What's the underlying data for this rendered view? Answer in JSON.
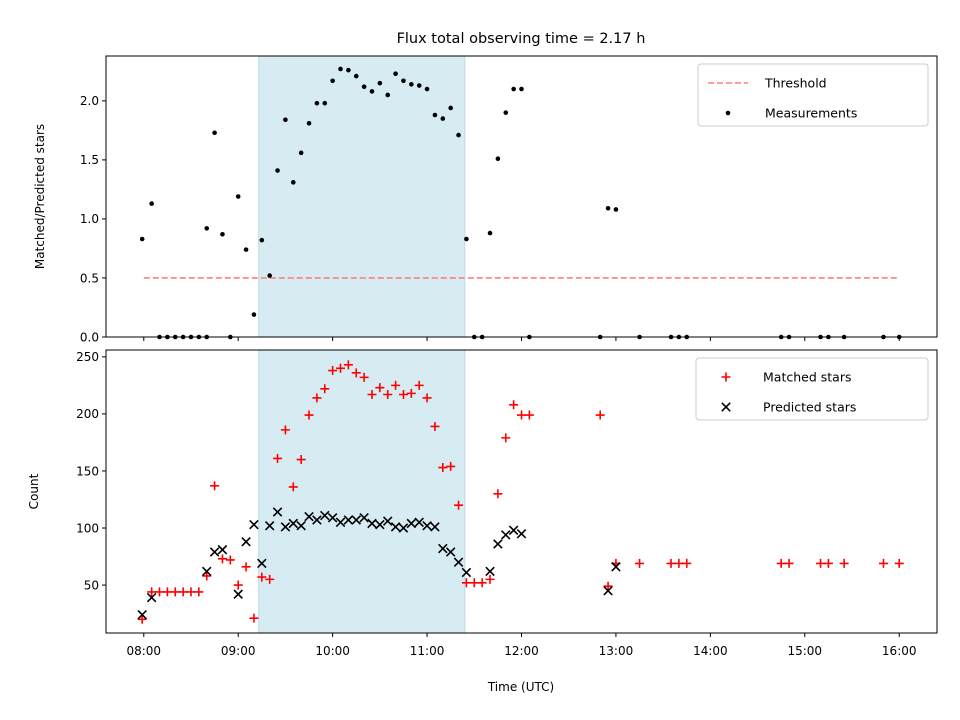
{
  "chart_data": [
    {
      "type": "scatter",
      "title": "Flux total observing time = 2.17 h",
      "ylabel": "Matched/Predicted stars",
      "xlabel": "",
      "xlim": [
        "07:36",
        "16:24"
      ],
      "ylim": [
        0,
        2.38
      ],
      "yticks": [
        "0.0",
        "0.5",
        "1.0",
        "1.5",
        "2.0"
      ],
      "shaded_region": [
        "09:13",
        "11:24"
      ],
      "legend_position": "top-right",
      "colors": {
        "threshold": "#ff7f7f",
        "measurements": "#000000",
        "shade": "#add8e6"
      },
      "series": [
        {
          "name": "Threshold",
          "kind": "dashed-line",
          "points": [
            [
              "08:00",
              0.5
            ],
            [
              "16:00",
              0.5
            ]
          ]
        },
        {
          "name": "Measurements",
          "kind": "dot",
          "points": [
            [
              "07:59",
              0.83
            ],
            [
              "08:05",
              1.13
            ],
            [
              "08:10",
              0.0
            ],
            [
              "08:15",
              0.0
            ],
            [
              "08:20",
              0.0
            ],
            [
              "08:25",
              0.0
            ],
            [
              "08:30",
              0.0
            ],
            [
              "08:35",
              0.0
            ],
            [
              "08:40",
              0.0
            ],
            [
              "08:40",
              0.92
            ],
            [
              "08:45",
              1.73
            ],
            [
              "08:50",
              0.87
            ],
            [
              "08:55",
              0.0
            ],
            [
              "09:00",
              1.19
            ],
            [
              "09:05",
              0.74
            ],
            [
              "09:10",
              0.19
            ],
            [
              "09:15",
              0.82
            ],
            [
              "09:20",
              0.52
            ],
            [
              "09:25",
              1.41
            ],
            [
              "09:30",
              1.84
            ],
            [
              "09:35",
              1.31
            ],
            [
              "09:40",
              1.56
            ],
            [
              "09:45",
              1.81
            ],
            [
              "09:50",
              1.98
            ],
            [
              "09:55",
              1.98
            ],
            [
              "10:00",
              2.17
            ],
            [
              "10:05",
              2.27
            ],
            [
              "10:10",
              2.26
            ],
            [
              "10:15",
              2.21
            ],
            [
              "10:20",
              2.12
            ],
            [
              "10:25",
              2.08
            ],
            [
              "10:30",
              2.15
            ],
            [
              "10:35",
              2.05
            ],
            [
              "10:40",
              2.23
            ],
            [
              "10:45",
              2.17
            ],
            [
              "10:50",
              2.14
            ],
            [
              "10:55",
              2.13
            ],
            [
              "11:00",
              2.1
            ],
            [
              "11:05",
              1.88
            ],
            [
              "11:10",
              1.85
            ],
            [
              "11:15",
              1.94
            ],
            [
              "11:20",
              1.71
            ],
            [
              "11:25",
              0.83
            ],
            [
              "11:30",
              0.0
            ],
            [
              "11:35",
              0.0
            ],
            [
              "11:40",
              0.88
            ],
            [
              "11:45",
              1.51
            ],
            [
              "11:50",
              1.9
            ],
            [
              "11:55",
              2.1
            ],
            [
              "12:00",
              2.1
            ],
            [
              "12:05",
              0.0
            ],
            [
              "12:50",
              0.0
            ],
            [
              "12:55",
              1.09
            ],
            [
              "13:00",
              1.08
            ],
            [
              "13:15",
              0.0
            ],
            [
              "13:35",
              0.0
            ],
            [
              "13:40",
              0.0
            ],
            [
              "13:45",
              0.0
            ],
            [
              "14:45",
              0.0
            ],
            [
              "14:50",
              0.0
            ],
            [
              "15:10",
              0.0
            ],
            [
              "15:15",
              0.0
            ],
            [
              "15:25",
              0.0
            ],
            [
              "15:50",
              0.0
            ],
            [
              "16:00",
              0.0
            ]
          ]
        }
      ]
    },
    {
      "type": "scatter",
      "title": "",
      "xlabel": "Time (UTC)",
      "ylabel": "Count",
      "xlim": [
        "07:36",
        "16:24"
      ],
      "ylim": [
        8,
        256
      ],
      "xticks": [
        "08:00",
        "09:00",
        "10:00",
        "11:00",
        "12:00",
        "13:00",
        "14:00",
        "15:00",
        "16:00"
      ],
      "yticks": [
        "50",
        "100",
        "150",
        "200",
        "250"
      ],
      "shaded_region": [
        "09:13",
        "11:24"
      ],
      "legend_position": "top-right",
      "colors": {
        "matched": "#ff0000",
        "predicted": "#000000",
        "shade": "#add8e6"
      },
      "series": [
        {
          "name": "Matched stars",
          "kind": "plus",
          "points": [
            [
              "07:59",
              20
            ],
            [
              "08:05",
              44
            ],
            [
              "08:10",
              44
            ],
            [
              "08:15",
              44
            ],
            [
              "08:20",
              44
            ],
            [
              "08:25",
              44
            ],
            [
              "08:30",
              44
            ],
            [
              "08:35",
              44
            ],
            [
              "08:40",
              58
            ],
            [
              "08:45",
              137
            ],
            [
              "08:50",
              73
            ],
            [
              "08:55",
              72
            ],
            [
              "09:00",
              50
            ],
            [
              "09:05",
              66
            ],
            [
              "09:10",
              21
            ],
            [
              "09:15",
              57
            ],
            [
              "09:20",
              55
            ],
            [
              "09:25",
              161
            ],
            [
              "09:30",
              186
            ],
            [
              "09:35",
              136
            ],
            [
              "09:40",
              160
            ],
            [
              "09:45",
              199
            ],
            [
              "09:50",
              214
            ],
            [
              "09:55",
              222
            ],
            [
              "10:00",
              238
            ],
            [
              "10:05",
              240
            ],
            [
              "10:10",
              243
            ],
            [
              "10:15",
              236
            ],
            [
              "10:20",
              232
            ],
            [
              "10:25",
              217
            ],
            [
              "10:30",
              223
            ],
            [
              "10:35",
              217
            ],
            [
              "10:40",
              225
            ],
            [
              "10:45",
              217
            ],
            [
              "10:50",
              218
            ],
            [
              "10:55",
              225
            ],
            [
              "11:00",
              214
            ],
            [
              "11:05",
              189
            ],
            [
              "11:10",
              153
            ],
            [
              "11:15",
              154
            ],
            [
              "11:20",
              120
            ],
            [
              "11:25",
              52
            ],
            [
              "11:30",
              52
            ],
            [
              "11:35",
              52
            ],
            [
              "11:40",
              55
            ],
            [
              "11:45",
              130
            ],
            [
              "11:50",
              179
            ],
            [
              "11:55",
              208
            ],
            [
              "12:00",
              199
            ],
            [
              "12:05",
              199
            ],
            [
              "12:50",
              199
            ],
            [
              "12:55",
              49
            ],
            [
              "13:00",
              69
            ],
            [
              "13:15",
              69
            ],
            [
              "13:35",
              69
            ],
            [
              "13:40",
              69
            ],
            [
              "13:45",
              69
            ],
            [
              "14:45",
              69
            ],
            [
              "14:50",
              69
            ],
            [
              "15:10",
              69
            ],
            [
              "15:15",
              69
            ],
            [
              "15:25",
              69
            ],
            [
              "15:50",
              69
            ],
            [
              "16:00",
              69
            ]
          ]
        },
        {
          "name": "Predicted stars",
          "kind": "x",
          "points": [
            [
              "07:59",
              24
            ],
            [
              "08:05",
              39
            ],
            [
              "08:40",
              62
            ],
            [
              "08:45",
              79
            ],
            [
              "08:50",
              81
            ],
            [
              "09:00",
              42
            ],
            [
              "09:05",
              88
            ],
            [
              "09:10",
              103
            ],
            [
              "09:15",
              69
            ],
            [
              "09:20",
              102
            ],
            [
              "09:25",
              114
            ],
            [
              "09:30",
              101
            ],
            [
              "09:35",
              104
            ],
            [
              "09:40",
              102
            ],
            [
              "09:45",
              110
            ],
            [
              "09:50",
              107
            ],
            [
              "09:55",
              111
            ],
            [
              "10:00",
              109
            ],
            [
              "10:05",
              105
            ],
            [
              "10:10",
              107
            ],
            [
              "10:15",
              107
            ],
            [
              "10:20",
              109
            ],
            [
              "10:25",
              104
            ],
            [
              "10:30",
              103
            ],
            [
              "10:35",
              106
            ],
            [
              "10:40",
              101
            ],
            [
              "10:45",
              100
            ],
            [
              "10:50",
              104
            ],
            [
              "10:55",
              105
            ],
            [
              "11:00",
              102
            ],
            [
              "11:05",
              101
            ],
            [
              "11:10",
              82
            ],
            [
              "11:15",
              79
            ],
            [
              "11:20",
              70
            ],
            [
              "11:25",
              61
            ],
            [
              "11:40",
              62
            ],
            [
              "11:45",
              86
            ],
            [
              "11:50",
              94
            ],
            [
              "11:55",
              98
            ],
            [
              "12:00",
              95
            ],
            [
              "12:55",
              45
            ],
            [
              "13:00",
              66
            ]
          ]
        }
      ]
    }
  ]
}
